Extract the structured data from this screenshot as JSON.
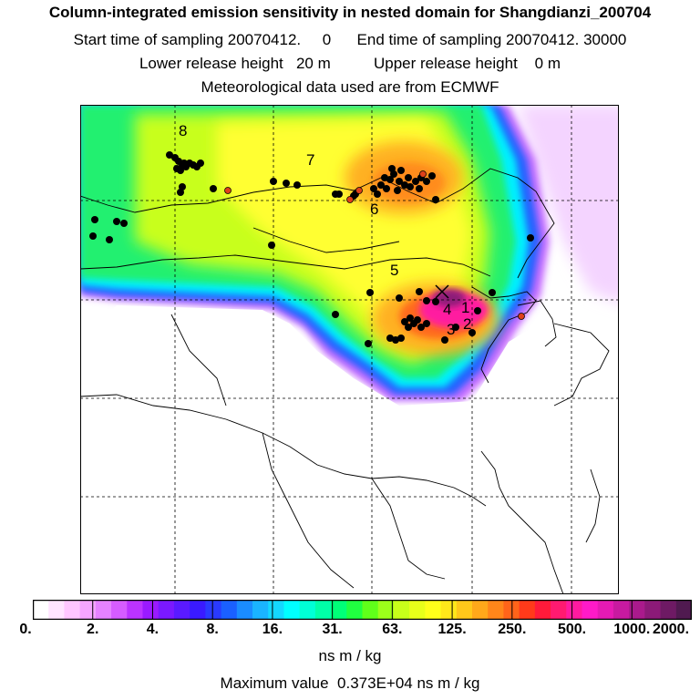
{
  "header": {
    "title": "Column-integrated emission sensitivity in nested domain for Shangdianzi_200704",
    "sampling": "Start time of sampling 20070412.     0      End time of sampling 20070412. 30000",
    "release": "Lower release height   20 m          Upper release height    0 m",
    "met": "Meteorological data used are from ECMWF"
  },
  "colorbar": {
    "tick_labels": [
      "0.",
      "2.",
      "4.",
      "8.",
      "16.",
      "31.",
      "63.",
      "125.",
      "250.",
      "500.",
      "1000.",
      "2000."
    ],
    "unit": "ns m / kg",
    "colors": [
      "#ffffff",
      "#ffe4ff",
      "#ffc6ff",
      "#f5a6ff",
      "#e682ff",
      "#d65cff",
      "#bb33ff",
      "#9a1aff",
      "#7a19ff",
      "#5a1aff",
      "#3a1aff",
      "#2a3aff",
      "#1a60ff",
      "#1a8cff",
      "#1ab4ff",
      "#14d8ff",
      "#00ffff",
      "#00ffd6",
      "#00ffa8",
      "#00ff78",
      "#20ff40",
      "#60ff1a",
      "#9cff1a",
      "#c8ff1a",
      "#e8ff1a",
      "#ffff1a",
      "#ffe81a",
      "#ffc81a",
      "#ffa81a",
      "#ff861a",
      "#ff641a",
      "#ff3a1a",
      "#ff1a3a",
      "#ff1a70",
      "#ff1aa0",
      "#ff1ac8",
      "#e61ab4",
      "#c81aa0",
      "#aa1a8c",
      "#8c1a78",
      "#6e1a64",
      "#501a50"
    ]
  },
  "footer": {
    "max_value": "Maximum value  0.373E+04 ns m / kg"
  },
  "map": {
    "trajectory_labels": [
      "8",
      "7",
      "6",
      "5",
      "4",
      "3",
      "2",
      "1"
    ],
    "station_marker": "receptor-x-icon",
    "dot_color": "#000000",
    "highlight_dot_color": "#e0401a"
  }
}
